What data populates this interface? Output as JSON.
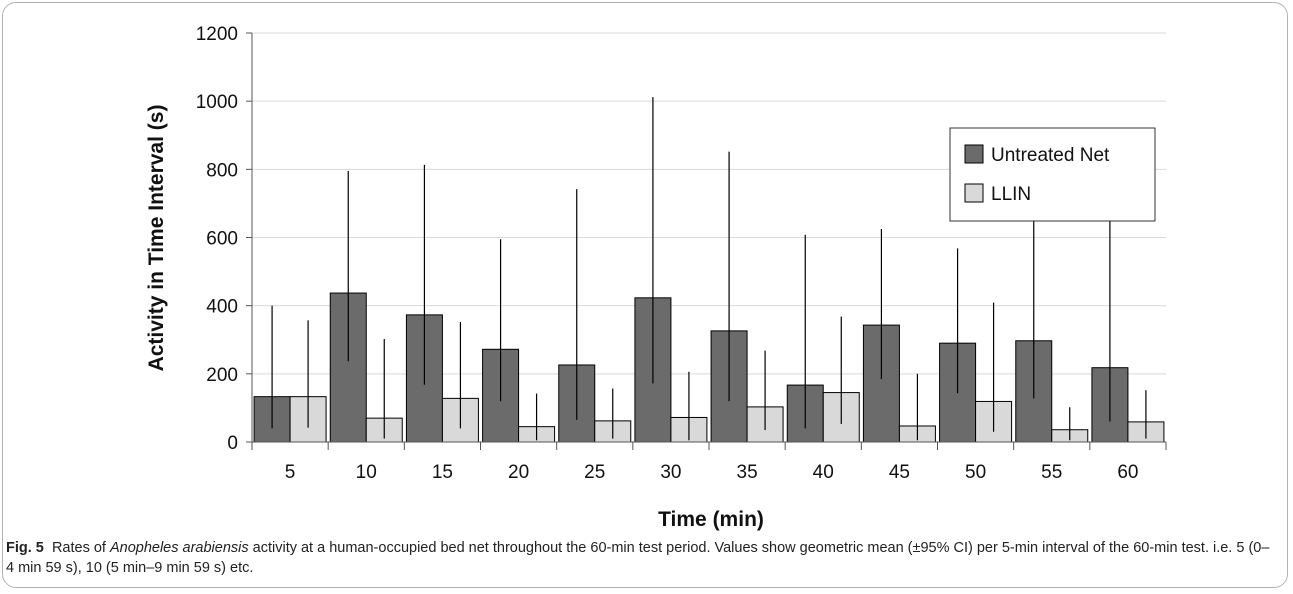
{
  "chart_data": {
    "type": "bar",
    "xlabel": "Time (min)",
    "ylabel": "Activity in Time Interval (s)",
    "categories": [
      "5",
      "10",
      "15",
      "20",
      "25",
      "30",
      "35",
      "40",
      "45",
      "50",
      "55",
      "60"
    ],
    "ylim": [
      0,
      1200
    ],
    "yticks": [
      0,
      200,
      400,
      600,
      800,
      1000,
      1200
    ],
    "grid": "horizontal",
    "legend_position": "top-right",
    "series": [
      {
        "name": "Untreated Net",
        "color": "#6b6b6b",
        "values": [
          133,
          437,
          373,
          272,
          226,
          423,
          326,
          167,
          343,
          290,
          297,
          218
        ],
        "ci_low": [
          40,
          237,
          168,
          120,
          65,
          172,
          120,
          40,
          185,
          143,
          128,
          60
        ],
        "ci_high": [
          400,
          795,
          813,
          595,
          742,
          1012,
          852,
          608,
          625,
          568,
          678,
          763
        ]
      },
      {
        "name": "LLIN",
        "color": "#d9d9d9",
        "values": [
          133,
          70,
          128,
          45,
          62,
          72,
          103,
          145,
          47,
          119,
          36,
          59
        ],
        "ci_low": [
          42,
          10,
          40,
          5,
          10,
          5,
          35,
          53,
          5,
          30,
          5,
          10
        ],
        "ci_high": [
          357,
          302,
          352,
          142,
          157,
          206,
          268,
          368,
          200,
          409,
          102,
          152
        ]
      }
    ]
  },
  "caption": {
    "label": "Fig. 5",
    "text_before": "Rates of ",
    "species": "Anopheles arabiensis",
    "text_after": " activity at a human-occupied bed net throughout the 60-min test period. Values show geometric mean (±95% CI) per 5-min interval of the 60-min test. i.e. 5 (0–4 min 59 s), 10 (5 min–9 min 59 s) etc."
  }
}
